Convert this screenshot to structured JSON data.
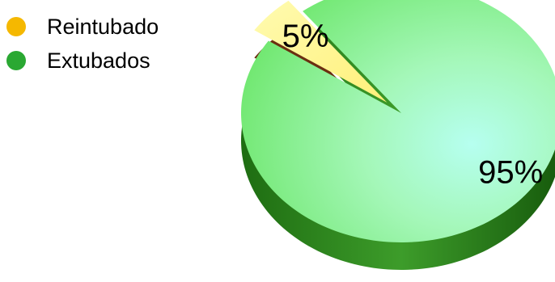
{
  "legend": [
    {
      "label": "Reintubado",
      "color": "#f5b800"
    },
    {
      "label": "Extubados",
      "color": "#2aa832"
    }
  ],
  "chart_data": {
    "type": "pie",
    "categories": [
      "Reintubado",
      "Extubados"
    ],
    "values": [
      5,
      95
    ],
    "data_labels": [
      "5%",
      "95%"
    ],
    "title": "",
    "legend_position": "top-left",
    "colors": [
      "#fff48a",
      "#8ef28e"
    ]
  }
}
